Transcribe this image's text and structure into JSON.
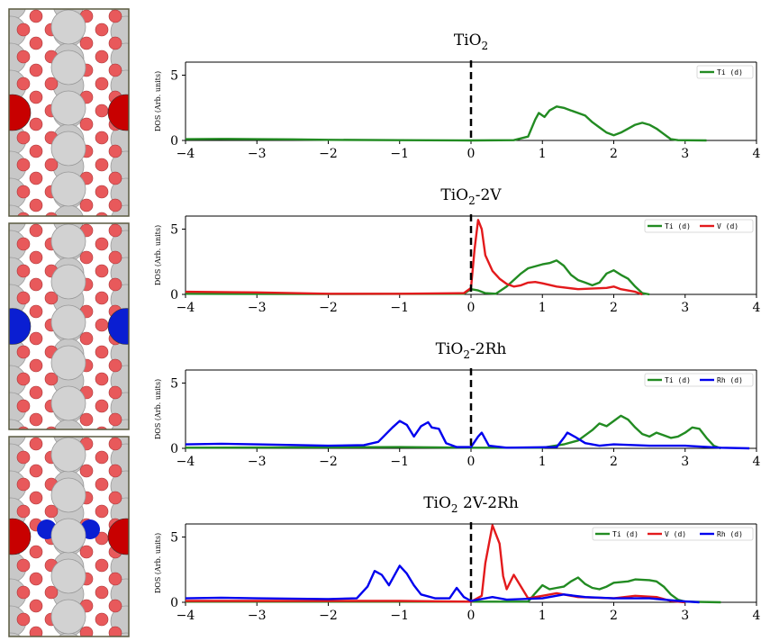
{
  "chart_data": [
    {
      "type": "line",
      "title": "TiO2",
      "title_base": "TiO",
      "title_sub": "2",
      "title_suffix": "",
      "ylabel": "DOS (Arb. units)",
      "xlim": [
        -4,
        4
      ],
      "ylim": [
        0,
        6
      ],
      "x_ticks": [
        -4,
        -3,
        -2,
        -1,
        0,
        1,
        2,
        3,
        4
      ],
      "y_ticks": [
        0,
        5
      ],
      "fermi_line": 0,
      "legend_position": "top-right",
      "series": [
        {
          "name": "Ti (d)",
          "color": "#228b22",
          "points": [
            [
              -4,
              0.1
            ],
            [
              -3.5,
              0.12
            ],
            [
              -3,
              0.1
            ],
            [
              -2.5,
              0.08
            ],
            [
              -2,
              0.05
            ],
            [
              -1,
              0.02
            ],
            [
              0,
              0.0
            ],
            [
              0.6,
              0.02
            ],
            [
              0.8,
              0.3
            ],
            [
              0.9,
              1.6
            ],
            [
              0.95,
              2.1
            ],
            [
              1.03,
              1.8
            ],
            [
              1.1,
              2.3
            ],
            [
              1.2,
              2.6
            ],
            [
              1.3,
              2.5
            ],
            [
              1.4,
              2.3
            ],
            [
              1.5,
              2.1
            ],
            [
              1.6,
              1.9
            ],
            [
              1.7,
              1.4
            ],
            [
              1.8,
              1.0
            ],
            [
              1.9,
              0.6
            ],
            [
              2.0,
              0.4
            ],
            [
              2.1,
              0.6
            ],
            [
              2.2,
              0.9
            ],
            [
              2.3,
              1.2
            ],
            [
              2.4,
              1.35
            ],
            [
              2.5,
              1.2
            ],
            [
              2.6,
              0.9
            ],
            [
              2.7,
              0.5
            ],
            [
              2.8,
              0.1
            ],
            [
              2.9,
              0.02
            ],
            [
              3.3,
              0.0
            ]
          ]
        }
      ]
    },
    {
      "type": "line",
      "title": "TiO2-2V",
      "title_base": "TiO",
      "title_sub": "2",
      "title_suffix": "-2V",
      "ylabel": "DOS (Arb. units)",
      "xlim": [
        -4,
        4
      ],
      "ylim": [
        0,
        6
      ],
      "x_ticks": [
        -4,
        -3,
        -2,
        -1,
        0,
        1,
        2,
        3,
        4
      ],
      "y_ticks": [
        0,
        5
      ],
      "fermi_line": 0,
      "legend_position": "top-right",
      "series": [
        {
          "name": "Ti (d)",
          "color": "#228b22",
          "points": [
            [
              -4,
              0.05
            ],
            [
              -2,
              0.03
            ],
            [
              -0.1,
              0.05
            ],
            [
              0.0,
              0.4
            ],
            [
              0.1,
              0.3
            ],
            [
              0.2,
              0.1
            ],
            [
              0.35,
              0.05
            ],
            [
              0.5,
              0.6
            ],
            [
              0.7,
              1.6
            ],
            [
              0.8,
              2.0
            ],
            [
              1.0,
              2.3
            ],
            [
              1.1,
              2.4
            ],
            [
              1.2,
              2.6
            ],
            [
              1.3,
              2.2
            ],
            [
              1.4,
              1.5
            ],
            [
              1.5,
              1.1
            ],
            [
              1.6,
              0.9
            ],
            [
              1.7,
              0.7
            ],
            [
              1.8,
              0.9
            ],
            [
              1.9,
              1.6
            ],
            [
              2.0,
              1.85
            ],
            [
              2.1,
              1.5
            ],
            [
              2.2,
              1.2
            ],
            [
              2.3,
              0.6
            ],
            [
              2.4,
              0.1
            ],
            [
              2.5,
              0.0
            ]
          ]
        },
        {
          "name": "V (d)",
          "color": "#e31a1c",
          "points": [
            [
              -4,
              0.2
            ],
            [
              -3,
              0.15
            ],
            [
              -2,
              0.05
            ],
            [
              -1,
              0.05
            ],
            [
              -0.1,
              0.1
            ],
            [
              0.0,
              0.5
            ],
            [
              0.05,
              3.5
            ],
            [
              0.1,
              5.7
            ],
            [
              0.15,
              5.0
            ],
            [
              0.2,
              3.0
            ],
            [
              0.3,
              1.8
            ],
            [
              0.4,
              1.2
            ],
            [
              0.5,
              0.8
            ],
            [
              0.6,
              0.6
            ],
            [
              0.7,
              0.7
            ],
            [
              0.8,
              0.9
            ],
            [
              0.9,
              0.95
            ],
            [
              1.0,
              0.85
            ],
            [
              1.2,
              0.6
            ],
            [
              1.5,
              0.4
            ],
            [
              1.9,
              0.5
            ],
            [
              2.0,
              0.6
            ],
            [
              2.1,
              0.4
            ],
            [
              2.3,
              0.2
            ],
            [
              2.4,
              0.0
            ]
          ]
        }
      ]
    },
    {
      "type": "line",
      "title": "TiO2-2Rh",
      "title_base": "TiO",
      "title_sub": "2",
      "title_suffix": "-2Rh",
      "ylabel": "DOS (Arb. units)",
      "xlim": [
        -4,
        4
      ],
      "ylim": [
        0,
        6
      ],
      "x_ticks": [
        -4,
        -3,
        -2,
        -1,
        0,
        1,
        2,
        3,
        4
      ],
      "y_ticks": [
        0,
        5
      ],
      "fermi_line": 0,
      "legend_position": "top-right",
      "series": [
        {
          "name": "Ti (d)",
          "color": "#228b22",
          "points": [
            [
              -4,
              0.05
            ],
            [
              -1,
              0.1
            ],
            [
              0,
              0.05
            ],
            [
              1.0,
              0.05
            ],
            [
              1.3,
              0.3
            ],
            [
              1.5,
              0.6
            ],
            [
              1.7,
              1.4
            ],
            [
              1.8,
              1.9
            ],
            [
              1.9,
              1.7
            ],
            [
              2.0,
              2.1
            ],
            [
              2.1,
              2.5
            ],
            [
              2.2,
              2.2
            ],
            [
              2.3,
              1.6
            ],
            [
              2.4,
              1.1
            ],
            [
              2.5,
              0.9
            ],
            [
              2.6,
              1.2
            ],
            [
              2.7,
              1.0
            ],
            [
              2.8,
              0.8
            ],
            [
              2.9,
              0.9
            ],
            [
              3.0,
              1.2
            ],
            [
              3.1,
              1.6
            ],
            [
              3.2,
              1.5
            ],
            [
              3.3,
              0.8
            ],
            [
              3.4,
              0.2
            ],
            [
              3.5,
              0.0
            ]
          ]
        },
        {
          "name": "Rh (d)",
          "color": "#0000ee",
          "points": [
            [
              -4,
              0.3
            ],
            [
              -3.5,
              0.35
            ],
            [
              -3,
              0.3
            ],
            [
              -2,
              0.2
            ],
            [
              -1.5,
              0.25
            ],
            [
              -1.3,
              0.5
            ],
            [
              -1.1,
              1.6
            ],
            [
              -1.0,
              2.1
            ],
            [
              -0.9,
              1.8
            ],
            [
              -0.8,
              0.9
            ],
            [
              -0.7,
              1.7
            ],
            [
              -0.6,
              2.0
            ],
            [
              -0.55,
              1.6
            ],
            [
              -0.45,
              1.5
            ],
            [
              -0.35,
              0.4
            ],
            [
              -0.2,
              0.1
            ],
            [
              0.0,
              0.1
            ],
            [
              0.1,
              0.9
            ],
            [
              0.15,
              1.2
            ],
            [
              0.25,
              0.2
            ],
            [
              0.5,
              0.05
            ],
            [
              1.2,
              0.1
            ],
            [
              1.3,
              0.8
            ],
            [
              1.35,
              1.2
            ],
            [
              1.45,
              0.9
            ],
            [
              1.6,
              0.4
            ],
            [
              1.8,
              0.2
            ],
            [
              2.0,
              0.3
            ],
            [
              2.5,
              0.2
            ],
            [
              3.0,
              0.2
            ],
            [
              3.5,
              0.05
            ],
            [
              3.9,
              0.0
            ]
          ]
        }
      ]
    },
    {
      "type": "line",
      "title": "TiO2 2V-2Rh",
      "title_base": "TiO",
      "title_sub": "2",
      "title_suffix": " 2V-2Rh",
      "ylabel": "DOS (Arb. units)",
      "xlim": [
        -4,
        4
      ],
      "ylim": [
        0,
        6
      ],
      "x_ticks": [
        -4,
        -3,
        -2,
        -1,
        0,
        1,
        2,
        3,
        4
      ],
      "y_ticks": [
        0,
        5
      ],
      "fermi_line": 0,
      "legend_position": "top-right",
      "series": [
        {
          "name": "Ti (d)",
          "color": "#228b22",
          "points": [
            [
              -4,
              0.05
            ],
            [
              -1,
              0.05
            ],
            [
              0,
              0.05
            ],
            [
              0.8,
              0.05
            ],
            [
              0.9,
              0.7
            ],
            [
              1.0,
              1.3
            ],
            [
              1.1,
              1.0
            ],
            [
              1.2,
              1.1
            ],
            [
              1.3,
              1.2
            ],
            [
              1.4,
              1.6
            ],
            [
              1.5,
              1.9
            ],
            [
              1.6,
              1.4
            ],
            [
              1.7,
              1.1
            ],
            [
              1.8,
              1.0
            ],
            [
              1.9,
              1.2
            ],
            [
              2.0,
              1.5
            ],
            [
              2.2,
              1.6
            ],
            [
              2.3,
              1.75
            ],
            [
              2.5,
              1.7
            ],
            [
              2.6,
              1.6
            ],
            [
              2.7,
              1.2
            ],
            [
              2.8,
              0.6
            ],
            [
              2.9,
              0.2
            ],
            [
              3.0,
              0.05
            ],
            [
              3.5,
              0.0
            ]
          ]
        },
        {
          "name": "V (d)",
          "color": "#e31a1c",
          "points": [
            [
              -4,
              0.1
            ],
            [
              -2,
              0.1
            ],
            [
              -1,
              0.1
            ],
            [
              0,
              0.05
            ],
            [
              0.15,
              0.5
            ],
            [
              0.2,
              3.0
            ],
            [
              0.3,
              5.9
            ],
            [
              0.4,
              4.5
            ],
            [
              0.45,
              2.0
            ],
            [
              0.5,
              1.0
            ],
            [
              0.6,
              2.1
            ],
            [
              0.7,
              1.2
            ],
            [
              0.8,
              0.3
            ],
            [
              1.0,
              0.5
            ],
            [
              1.2,
              0.7
            ],
            [
              1.5,
              0.4
            ],
            [
              2.0,
              0.3
            ],
            [
              2.3,
              0.5
            ],
            [
              2.6,
              0.4
            ],
            [
              2.8,
              0.1
            ],
            [
              3.0,
              0.0
            ]
          ]
        },
        {
          "name": "Rh (d)",
          "color": "#0000ee",
          "points": [
            [
              -4,
              0.3
            ],
            [
              -3.5,
              0.35
            ],
            [
              -3,
              0.3
            ],
            [
              -2,
              0.25
            ],
            [
              -1.6,
              0.3
            ],
            [
              -1.45,
              1.2
            ],
            [
              -1.35,
              2.4
            ],
            [
              -1.25,
              2.1
            ],
            [
              -1.15,
              1.3
            ],
            [
              -1.0,
              2.8
            ],
            [
              -0.9,
              2.2
            ],
            [
              -0.8,
              1.3
            ],
            [
              -0.7,
              0.6
            ],
            [
              -0.5,
              0.3
            ],
            [
              -0.3,
              0.3
            ],
            [
              -0.2,
              1.1
            ],
            [
              -0.1,
              0.4
            ],
            [
              0.0,
              0.1
            ],
            [
              0.3,
              0.4
            ],
            [
              0.5,
              0.2
            ],
            [
              1.0,
              0.3
            ],
            [
              1.3,
              0.6
            ],
            [
              1.6,
              0.4
            ],
            [
              2.0,
              0.3
            ],
            [
              2.5,
              0.3
            ],
            [
              2.9,
              0.1
            ],
            [
              3.2,
              0.0
            ]
          ]
        }
      ]
    }
  ],
  "structure_images": [
    {
      "dopant_color": "#c80000",
      "dopant_name": "red-atom"
    },
    {
      "dopant_color": "#0a1ed2",
      "dopant_name": "blue-atom"
    },
    {
      "dopant_color": "#c80000",
      "dopant_name": "red-and-blue-atom"
    }
  ]
}
